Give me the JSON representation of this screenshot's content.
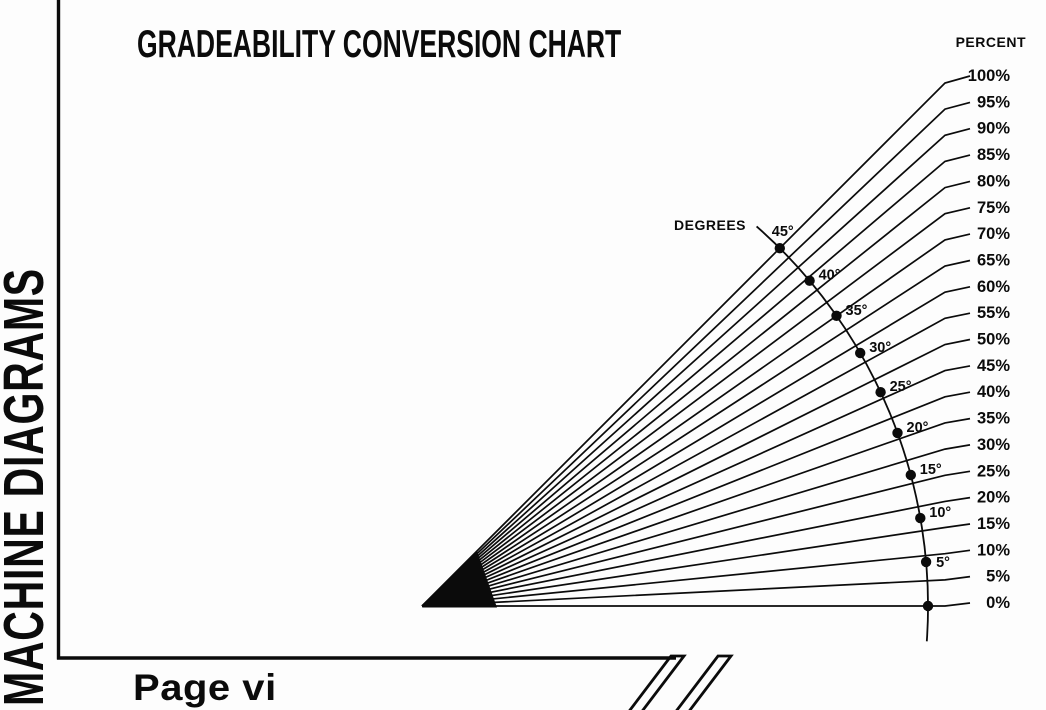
{
  "sidebar": {
    "title": "MACHINE DIAGRAMS"
  },
  "header": {
    "title": "GRADEABILITY CONVERSION CHART"
  },
  "footer": {
    "page_label": "Page vi"
  },
  "chart": {
    "degrees_axis_label": "DEGREES",
    "percent_axis_label": "PERCENT"
  },
  "chart_data": {
    "type": "line",
    "title": "GRADEABILITY CONVERSION CHART",
    "xlabel": "DEGREES",
    "ylabel": "PERCENT",
    "relationship": "percent_grade = tan(angle_in_degrees) × 100",
    "layout": "fan of grade lines radiating from a common origin; degree scale drawn as a dotted arc crossing the fan; percent values labeled at the right ends of the lines",
    "percent_lines": [
      0,
      5,
      10,
      15,
      20,
      25,
      30,
      35,
      40,
      45,
      50,
      55,
      60,
      65,
      70,
      75,
      80,
      85,
      90,
      95,
      100
    ],
    "percent_labels": [
      "0%",
      "5%",
      "10%",
      "15%",
      "20%",
      "25%",
      "30%",
      "35%",
      "40%",
      "45%",
      "50%",
      "55%",
      "60%",
      "65%",
      "70%",
      "75%",
      "80%",
      "85%",
      "90%",
      "95%",
      "100%"
    ],
    "degree_points": [
      0,
      5,
      10,
      15,
      20,
      25,
      30,
      35,
      40,
      45
    ],
    "degree_labels": [
      "",
      "5°",
      "10°",
      "15°",
      "20°",
      "25°",
      "30°",
      "35°",
      "40°",
      "45°"
    ],
    "legend_position": "none",
    "grid": false
  }
}
